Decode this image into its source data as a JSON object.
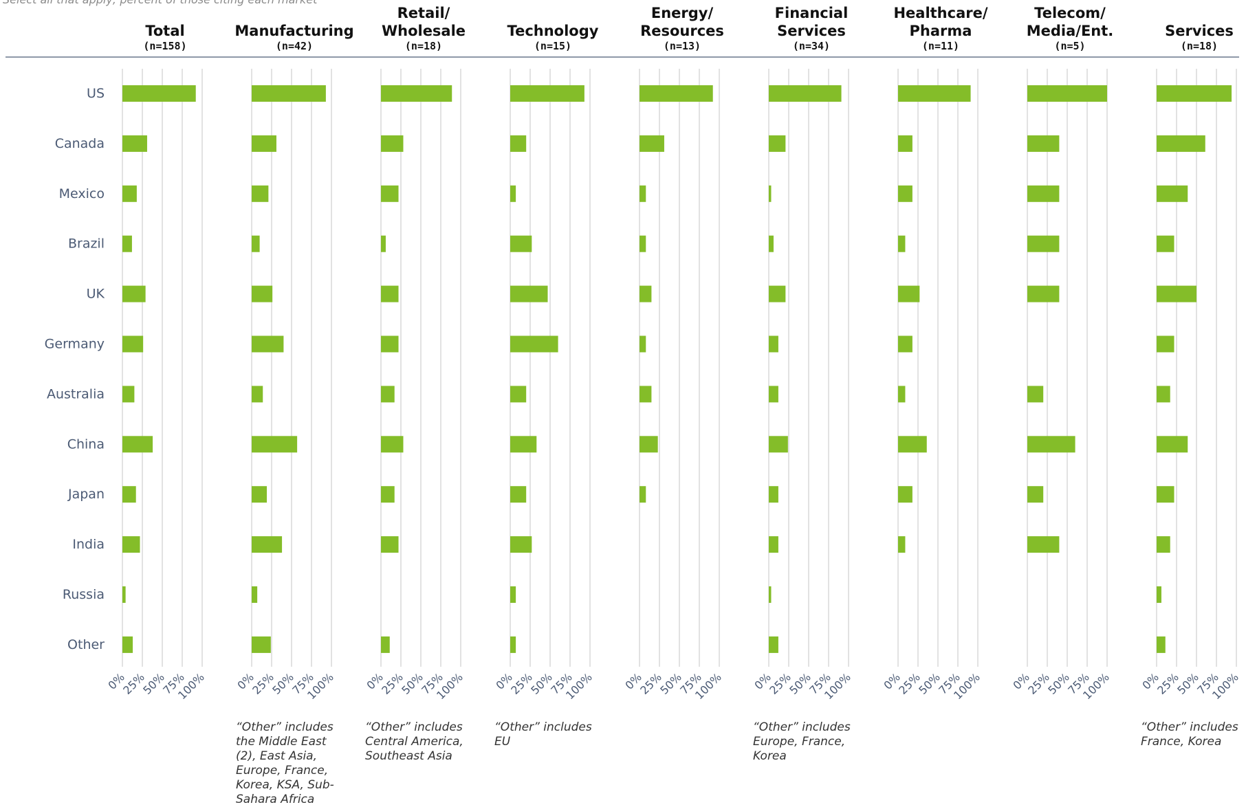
{
  "top_note": "Select all that apply; percent of those citing each market",
  "chart_data": {
    "type": "bar",
    "orientation": "horizontal",
    "layout": "small-multiples",
    "categories": [
      "US",
      "Canada",
      "Mexico",
      "Brazil",
      "UK",
      "Germany",
      "Australia",
      "China",
      "Japan",
      "India",
      "Russia",
      "Other"
    ],
    "xlim": [
      0,
      100
    ],
    "x_ticks": [
      "0%",
      "25%",
      "50%",
      "75%",
      "100%"
    ],
    "grid": true,
    "bar_color": "#84bd29",
    "panels": [
      {
        "title": [
          "Total"
        ],
        "n": "(n=158)",
        "values": [
          92,
          31,
          18,
          12,
          29,
          26,
          15,
          38,
          17,
          22,
          4,
          13
        ],
        "note": ""
      },
      {
        "title": [
          "Manufacturing"
        ],
        "n": "(n=42)",
        "values": [
          93,
          31,
          21,
          10,
          26,
          40,
          14,
          57,
          19,
          38,
          7,
          24
        ],
        "note": "“Other” includes the Middle East (2), East Asia, Europe, France, Korea, KSA, Sub-Sahara Africa"
      },
      {
        "title": [
          "Retail/",
          "Wholesale"
        ],
        "n": "(n=18)",
        "values": [
          89,
          28,
          22,
          6,
          22,
          22,
          17,
          28,
          17,
          22,
          0,
          11
        ],
        "note": "“Other” includes Central America, Southeast Asia"
      },
      {
        "title": [
          "Technology"
        ],
        "n": "(n=15)",
        "values": [
          93,
          20,
          7,
          27,
          47,
          60,
          20,
          33,
          20,
          27,
          7,
          7
        ],
        "note": "“Other” includes EU"
      },
      {
        "title": [
          "Energy/",
          "Resources"
        ],
        "n": "(n=13)",
        "values": [
          92,
          31,
          8,
          8,
          15,
          8,
          15,
          23,
          8,
          0,
          0,
          0
        ],
        "note": ""
      },
      {
        "title": [
          "Financial",
          "Services"
        ],
        "n": "(n=34)",
        "values": [
          91,
          21,
          3,
          6,
          21,
          12,
          12,
          24,
          12,
          12,
          3,
          12
        ],
        "note": "“Other” includes Europe, France, Korea"
      },
      {
        "title": [
          "Healthcare/",
          "Pharma"
        ],
        "n": "(n=11)",
        "values": [
          91,
          18,
          18,
          9,
          27,
          18,
          9,
          36,
          18,
          9,
          0,
          0
        ],
        "note": ""
      },
      {
        "title": [
          "Telecom/",
          "Media/Ent."
        ],
        "n": "(n=5)",
        "values": [
          100,
          40,
          40,
          40,
          40,
          0,
          20,
          60,
          20,
          40,
          0,
          0
        ],
        "note": ""
      },
      {
        "title": [
          "Services"
        ],
        "n": "(n=18)",
        "values": [
          94,
          61,
          39,
          22,
          50,
          22,
          17,
          39,
          22,
          17,
          6,
          11
        ],
        "note": "“Other” includes France, Korea"
      }
    ]
  }
}
